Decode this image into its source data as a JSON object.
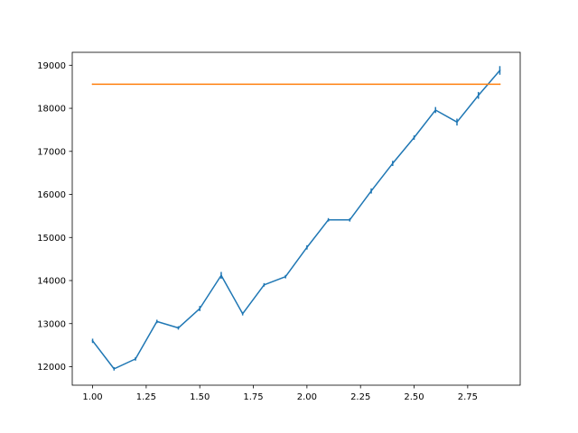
{
  "chart_data": {
    "type": "line",
    "title": "",
    "xlabel": "",
    "ylabel": "",
    "xlim": [
      0.905,
      2.995
    ],
    "ylim": [
      11570,
      19300
    ],
    "grid": false,
    "x_ticks": [
      1.0,
      1.25,
      1.5,
      1.75,
      2.0,
      2.25,
      2.5,
      2.75
    ],
    "x_tick_labels": [
      "1.00",
      "1.25",
      "1.50",
      "1.75",
      "2.00",
      "2.25",
      "2.50",
      "2.75"
    ],
    "y_ticks": [
      12000,
      13000,
      14000,
      15000,
      16000,
      17000,
      18000,
      19000
    ],
    "y_tick_labels": [
      "12000",
      "13000",
      "14000",
      "15000",
      "16000",
      "17000",
      "18000",
      "19000"
    ],
    "series": [
      {
        "color": "#1f77b4",
        "error_bars": true,
        "x": [
          1.0,
          1.1,
          1.2,
          1.3,
          1.4,
          1.5,
          1.6,
          1.7,
          1.8,
          1.9,
          2.0,
          2.1,
          2.2,
          2.3,
          2.4,
          2.5,
          2.6,
          2.7,
          2.8,
          2.9
        ],
        "y": [
          12600,
          11950,
          12180,
          13050,
          12900,
          13350,
          14120,
          13230,
          13900,
          14090,
          14770,
          15410,
          15410,
          16080,
          16720,
          17320,
          17960,
          17680,
          18300,
          18880
        ],
        "yerr": [
          50,
          40,
          40,
          40,
          40,
          60,
          80,
          40,
          40,
          40,
          50,
          40,
          40,
          60,
          60,
          50,
          70,
          80,
          80,
          100
        ]
      },
      {
        "color": "#ff7f0e",
        "error_bars": false,
        "x": [
          1.0,
          2.9
        ],
        "y": [
          18560,
          18560
        ]
      }
    ]
  }
}
